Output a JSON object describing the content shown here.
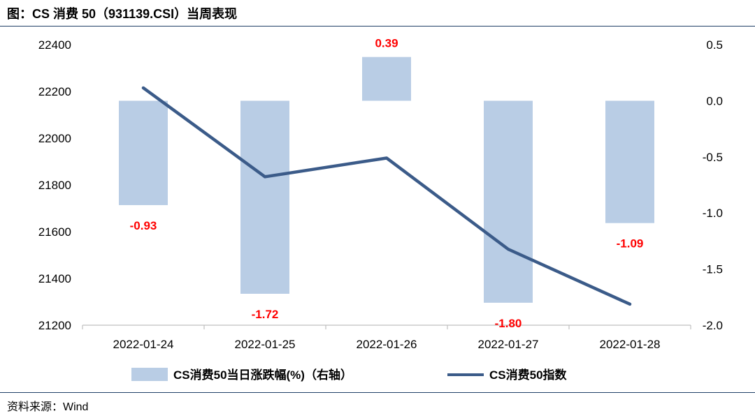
{
  "header": {
    "title": "图：CS 消费 50（931139.CSI）当周表现"
  },
  "footer": {
    "source": "资料来源：Wind"
  },
  "colors": {
    "bar": "#b9cde5",
    "line": "#3b5b89",
    "label": "#ff0000",
    "axis": "#bfbfbf"
  },
  "chart_data": {
    "type": "bar",
    "categories": [
      "2022-01-24",
      "2022-01-25",
      "2022-01-26",
      "2022-01-27",
      "2022-01-28"
    ],
    "series": [
      {
        "name": "CS消费50当日涨跌幅(%)（右轴）",
        "type": "bar",
        "axis": "right",
        "values": [
          -0.93,
          -1.72,
          0.39,
          -1.8,
          -1.09
        ],
        "data_labels": [
          "-0.93",
          "-1.72",
          "0.39",
          "-1.80",
          "-1.09"
        ]
      },
      {
        "name": "CS消费50指数",
        "type": "line",
        "axis": "left",
        "values": [
          22215,
          21835,
          21915,
          21525,
          21290
        ]
      }
    ],
    "left_axis": {
      "ylim": [
        21200,
        22400
      ],
      "ticks": [
        "21200",
        "21400",
        "21600",
        "21800",
        "22000",
        "22200",
        "22400"
      ]
    },
    "right_axis": {
      "ylim": [
        -2.0,
        0.5
      ],
      "ticks": [
        "-2.0",
        "-1.5",
        "-1.0",
        "-0.5",
        "0.0",
        "0.5"
      ]
    },
    "grid": false,
    "legend_position": "bottom"
  }
}
